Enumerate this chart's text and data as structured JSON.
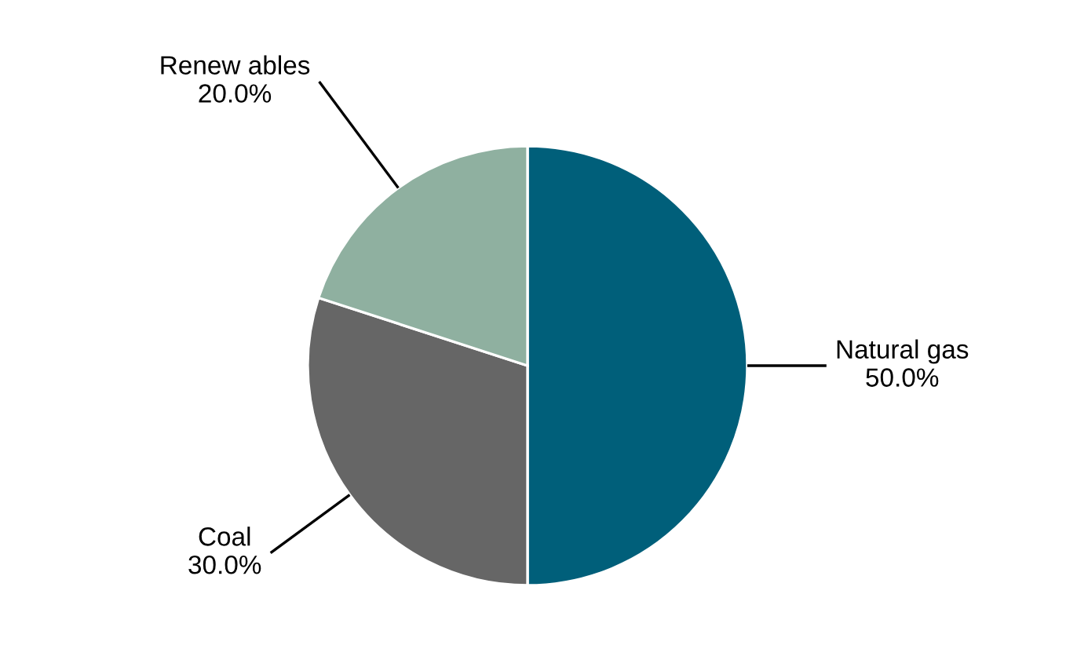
{
  "chart_data": {
    "type": "pie",
    "categories": [
      "Natural gas",
      "Coal",
      "Renew ables"
    ],
    "values": [
      50,
      30,
      20
    ],
    "value_labels": [
      "50.0%",
      "30.0%",
      "20.0%"
    ],
    "colors": [
      "#005f7a",
      "#666666",
      "#8fb0a0"
    ],
    "legend": false
  }
}
